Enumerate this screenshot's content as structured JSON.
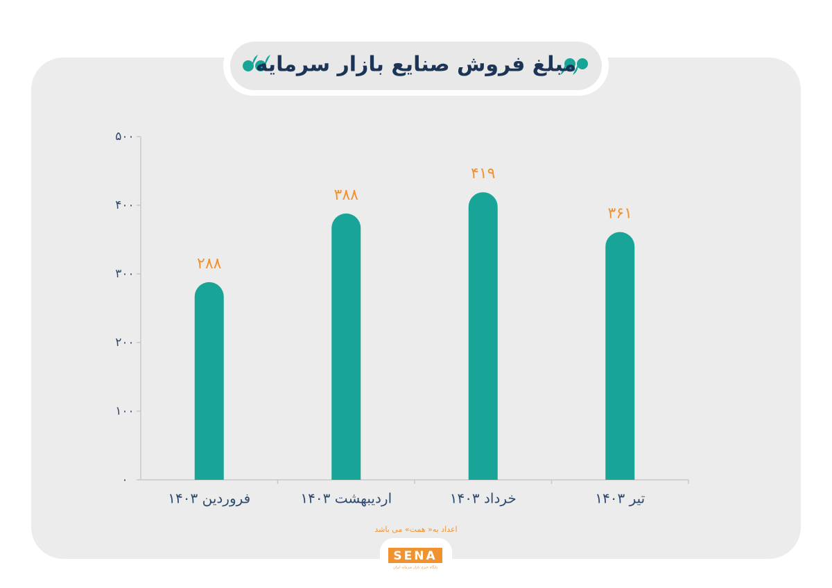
{
  "chart_data": {
    "type": "bar",
    "title": "مبلغ فروش صنایع بازار سرمایه",
    "categories": [
      "فروردین ۱۴۰۳",
      "اردیبهشت ۱۴۰۳",
      "خرداد ۱۴۰۳",
      "تیر ۱۴۰۳"
    ],
    "values": [
      288,
      388,
      419,
      361
    ],
    "value_labels": [
      "۲۸۸",
      "۳۸۸",
      "۴۱۹",
      "۳۶۱"
    ],
    "color": "#18a597",
    "ylim": [
      0,
      500
    ],
    "yticks": [
      {
        "value": 0,
        "label": "۰"
      },
      {
        "value": 100,
        "label": "۱۰۰"
      },
      {
        "value": 200,
        "label": "۲۰۰"
      },
      {
        "value": 300,
        "label": "۳۰۰"
      },
      {
        "value": 400,
        "label": "۴۰۰"
      },
      {
        "value": 500,
        "label": "۵۰۰"
      }
    ],
    "grid": false,
    "note": "اعداد به« همت» می باشد",
    "logo": "SENA",
    "logo_tagline": "پایگاه خبری بازار سرمایه ایران"
  }
}
